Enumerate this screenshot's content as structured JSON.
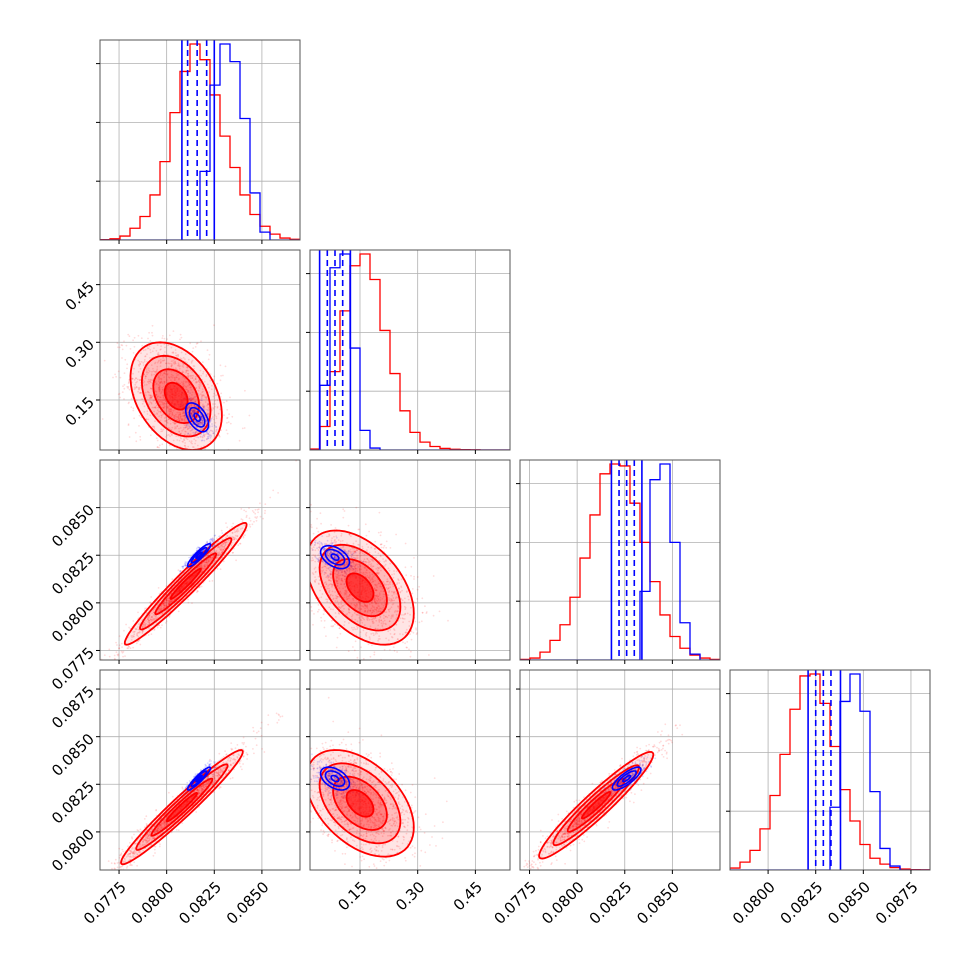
{
  "chart_data": {
    "type": "corner",
    "title": "",
    "legend": "none",
    "grid": true,
    "colors": {
      "sample_red": "#ff0000",
      "sample_blue": "#0000ff"
    },
    "parameters": [
      {
        "range": [
          0.0765,
          0.087
        ],
        "ticks": [
          0.0775,
          0.08,
          0.0825,
          0.085
        ],
        "tick_labels": [
          "0.0775",
          "0.0800",
          "0.0825",
          "0.0850"
        ]
      },
      {
        "range": [
          0.02,
          0.54
        ],
        "ticks": [
          0.15,
          0.3,
          0.45
        ],
        "tick_labels": [
          "0.15",
          "0.30",
          "0.45"
        ]
      },
      {
        "range": [
          0.077,
          0.0875
        ],
        "ticks": [
          0.0775,
          0.08,
          0.0825,
          0.085
        ],
        "tick_labels": [
          "0.0775",
          "0.0800",
          "0.0825",
          "0.0850"
        ]
      },
      {
        "range": [
          0.078,
          0.0885
        ],
        "ticks": [
          0.08,
          0.0825,
          0.085,
          0.0875
        ],
        "tick_labels": [
          "0.0800",
          "0.0825",
          "0.0850",
          "0.0875"
        ]
      }
    ],
    "histograms": [
      {
        "red": {
          "edges_start": 0.0765,
          "bin_width": 0.000525,
          "counts": [
            0.002,
            0.006,
            0.02,
            0.06,
            0.12,
            0.23,
            0.4,
            0.65,
            0.86,
            1.0,
            0.92,
            0.74,
            0.53,
            0.37,
            0.23,
            0.13,
            0.07,
            0.03,
            0.01,
            0.004
          ]
        },
        "blue": {
          "edges_start": 0.0765,
          "bin_width": 0.000525,
          "counts": [
            0,
            0,
            0,
            0,
            0,
            0,
            0,
            0,
            0,
            0,
            0.35,
            0.79,
            1.0,
            0.91,
            0.62,
            0.24,
            0.04,
            0,
            0,
            0
          ]
        },
        "quantiles": {
          "solid": [
            0.0808,
            0.0825
          ],
          "dashed": [
            0.0811,
            0.0816,
            0.0821
          ]
        }
      },
      {
        "red": {
          "edges_start": 0.02,
          "bin_width": 0.026,
          "counts": [
            0.005,
            0.12,
            0.4,
            0.71,
            0.94,
            1.0,
            0.87,
            0.61,
            0.39,
            0.2,
            0.09,
            0.04,
            0.018,
            0.008,
            0.004,
            0.002,
            0.001,
            0,
            0,
            0
          ]
        },
        "blue": {
          "edges_start": 0.02,
          "bin_width": 0.026,
          "counts": [
            0,
            0.33,
            0.93,
            1.0,
            0.52,
            0.1,
            0.01,
            0,
            0,
            0,
            0,
            0,
            0,
            0,
            0,
            0,
            0,
            0,
            0,
            0
          ]
        },
        "quantiles": {
          "solid": [
            0.045,
            0.125
          ],
          "dashed": [
            0.065,
            0.085,
            0.105
          ]
        }
      },
      {
        "red": {
          "edges_start": 0.077,
          "bin_width": 0.000525,
          "counts": [
            0.003,
            0.01,
            0.04,
            0.1,
            0.18,
            0.32,
            0.52,
            0.74,
            0.95,
            1.0,
            0.99,
            0.8,
            0.6,
            0.4,
            0.23,
            0.12,
            0.06,
            0.025,
            0.01,
            0.003
          ]
        },
        "blue": {
          "edges_start": 0.077,
          "bin_width": 0.000525,
          "counts": [
            0,
            0,
            0,
            0,
            0,
            0,
            0,
            0,
            0,
            0,
            0,
            0,
            0.35,
            0.92,
            1.0,
            0.6,
            0.19,
            0.03,
            0,
            0
          ]
        },
        "quantiles": {
          "solid": [
            0.0818,
            0.0834
          ],
          "dashed": [
            0.0822,
            0.0826,
            0.083
          ]
        }
      },
      {
        "red": {
          "edges_start": 0.078,
          "bin_width": 0.000525,
          "counts": [
            0.01,
            0.04,
            0.1,
            0.21,
            0.38,
            0.59,
            0.82,
            0.99,
            1.0,
            0.85,
            0.63,
            0.41,
            0.25,
            0.13,
            0.06,
            0.03,
            0.012,
            0.005,
            0.002,
            0.001
          ]
        },
        "blue": {
          "edges_start": 0.078,
          "bin_width": 0.000525,
          "counts": [
            0,
            0,
            0,
            0,
            0,
            0,
            0,
            0,
            0,
            0,
            0.32,
            0.86,
            1.0,
            0.81,
            0.4,
            0.11,
            0.02,
            0,
            0,
            0
          ]
        },
        "quantiles": {
          "solid": [
            0.0821,
            0.0838
          ],
          "dashed": [
            0.0825,
            0.0829,
            0.0833
          ]
        }
      }
    ],
    "pairs": [
      {
        "row": 1,
        "col": 0,
        "red": {
          "mean": [
            0.0805,
            0.16
          ],
          "sd": [
            0.0012,
            0.07
          ],
          "rho": -0.35
        },
        "blue": {
          "mean": [
            0.0816,
            0.105
          ],
          "sd": [
            0.0004,
            0.025
          ],
          "rho": -0.5
        }
      },
      {
        "row": 2,
        "col": 0,
        "red": {
          "mean": [
            0.081,
            0.081
          ],
          "sd": [
            0.0016,
            0.0016
          ],
          "rho": 0.97
        },
        "blue": {
          "mean": [
            0.0817,
            0.0825
          ],
          "sd": [
            0.0004,
            0.0004
          ],
          "rho": 0.9
        }
      },
      {
        "row": 2,
        "col": 1,
        "red": {
          "mean": [
            0.15,
            0.0808
          ],
          "sd": [
            0.07,
            0.0015
          ],
          "rho": -0.45
        },
        "blue": {
          "mean": [
            0.085,
            0.0824
          ],
          "sd": [
            0.025,
            0.0004
          ],
          "rho": -0.45
        }
      },
      {
        "row": 3,
        "col": 0,
        "red": {
          "mean": [
            0.0808,
            0.0813
          ],
          "sd": [
            0.0016,
            0.0015
          ],
          "rho": 0.97
        },
        "blue": {
          "mean": [
            0.0817,
            0.0828
          ],
          "sd": [
            0.0004,
            0.0004
          ],
          "rho": 0.92
        }
      },
      {
        "row": 3,
        "col": 1,
        "red": {
          "mean": [
            0.15,
            0.0815
          ],
          "sd": [
            0.07,
            0.0014
          ],
          "rho": -0.45
        },
        "blue": {
          "mean": [
            0.085,
            0.0828
          ],
          "sd": [
            0.025,
            0.0004
          ],
          "rho": -0.45
        }
      },
      {
        "row": 3,
        "col": 2,
        "red": {
          "mean": [
            0.081,
            0.0814
          ],
          "sd": [
            0.0015,
            0.0014
          ],
          "rho": 0.95
        },
        "blue": {
          "mean": [
            0.0826,
            0.0828
          ],
          "sd": [
            0.0005,
            0.0004
          ],
          "rho": 0.8
        }
      }
    ]
  }
}
